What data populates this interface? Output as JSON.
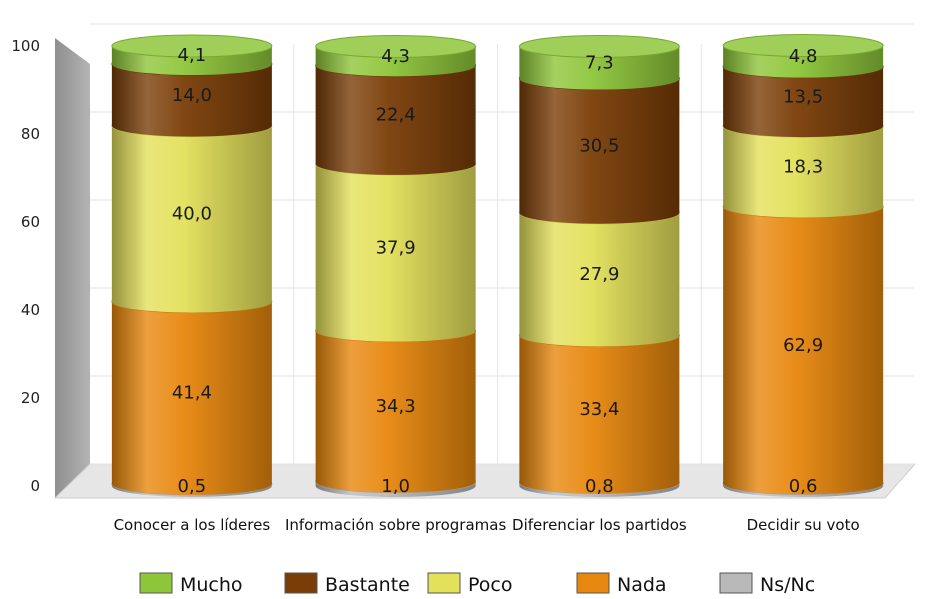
{
  "chart_data": {
    "type": "bar",
    "stacked": true,
    "style": "3d-cylinder",
    "categories": [
      "Conocer a los líderes",
      "Información sobre programas",
      "Diferenciar los partidos",
      "Decidir su voto"
    ],
    "series": [
      {
        "name": "Ns/Nc",
        "color": "#b9b9b9",
        "values": [
          0.5,
          1.0,
          0.8,
          0.6
        ],
        "labels": [
          "0,5",
          "1,0",
          "0,8",
          "0,6"
        ]
      },
      {
        "name": "Nada",
        "color": "#e8870d",
        "values": [
          41.4,
          34.3,
          33.4,
          62.9
        ],
        "labels": [
          "41,4",
          "34,3",
          "33,4",
          "62,9"
        ]
      },
      {
        "name": "Poco",
        "color": "#e3e05a",
        "values": [
          40.0,
          37.9,
          27.9,
          18.3
        ],
        "labels": [
          "40,0",
          "37,9",
          "27,9",
          "18,3"
        ]
      },
      {
        "name": "Bastante",
        "color": "#7a3d07",
        "values": [
          14.0,
          22.4,
          30.5,
          13.5
        ],
        "labels": [
          "14,0",
          "22,4",
          "30,5",
          "13,5"
        ]
      },
      {
        "name": "Mucho",
        "color": "#8ec63a",
        "values": [
          4.1,
          4.3,
          7.3,
          4.8
        ],
        "labels": [
          "4,1",
          "4,3",
          "7,3",
          "4,8"
        ]
      }
    ],
    "ylim": [
      0,
      100
    ],
    "yticks": [
      0,
      20,
      40,
      60,
      80,
      100
    ],
    "grid": true,
    "legend_position": "bottom",
    "legend_order": [
      "Mucho",
      "Bastante",
      "Poco",
      "Nada",
      "Ns/Nc"
    ]
  }
}
